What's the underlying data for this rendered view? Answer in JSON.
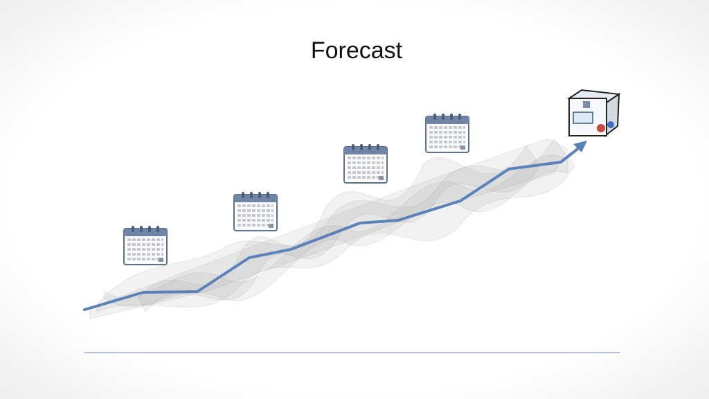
{
  "title": "Forecast"
}
